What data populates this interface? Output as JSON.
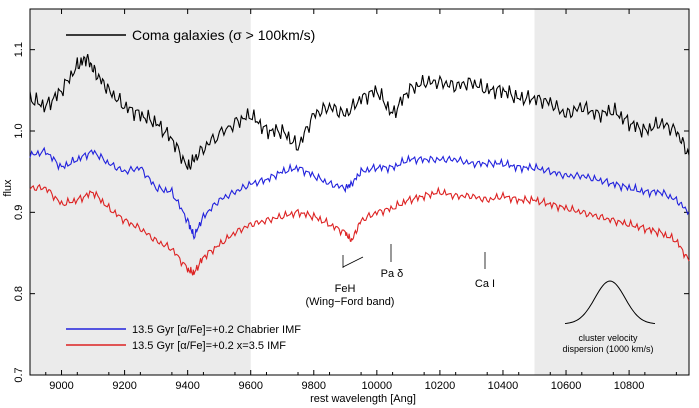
{
  "chart_data": {
    "type": "line",
    "title": "",
    "xlabel": "rest wavelength [Ang]",
    "ylabel": "flux",
    "xlim": [
      8900,
      10990
    ],
    "ylim": [
      0.7,
      1.15
    ],
    "x_ticks": [
      9000,
      9200,
      9400,
      9600,
      9800,
      10000,
      10200,
      10400,
      10600,
      10800
    ],
    "y_ticks": [
      0.7,
      0.8,
      0.9,
      1.0,
      1.1
    ],
    "shaded_regions": [
      [
        8900,
        9600
      ],
      [
        10500,
        10990
      ]
    ],
    "series": [
      {
        "name": "Coma galaxies (σ > 100km/s)",
        "color": "#000000",
        "x": [
          8900,
          8950,
          9000,
          9050,
          9080,
          9110,
          9150,
          9200,
          9250,
          9300,
          9350,
          9400,
          9430,
          9480,
          9550,
          9600,
          9650,
          9700,
          9750,
          9800,
          9850,
          9900,
          9950,
          10000,
          10050,
          10100,
          10150,
          10200,
          10250,
          10300,
          10350,
          10400,
          10450,
          10500,
          10550,
          10600,
          10650,
          10700,
          10750,
          10800,
          10850,
          10900,
          10950,
          10990
        ],
        "y": [
          1.04,
          1.03,
          1.05,
          1.08,
          1.09,
          1.07,
          1.05,
          1.03,
          1.02,
          1.01,
          0.99,
          0.955,
          0.97,
          0.99,
          1.01,
          1.02,
          1.0,
          1.0,
          0.98,
          1.02,
          1.03,
          1.02,
          1.04,
          1.05,
          1.02,
          1.05,
          1.06,
          1.06,
          1.055,
          1.06,
          1.05,
          1.05,
          1.04,
          1.04,
          1.035,
          1.02,
          1.03,
          1.02,
          1.025,
          1.01,
          1.0,
          1.01,
          1.0,
          0.97
        ]
      },
      {
        "name": "13.5 Gyr [α/Fe]=+0.2 Chabrier IMF",
        "color": "#2222dd",
        "x": [
          8900,
          8950,
          9000,
          9050,
          9100,
          9150,
          9200,
          9250,
          9300,
          9350,
          9400,
          9420,
          9450,
          9500,
          9550,
          9600,
          9650,
          9700,
          9750,
          9800,
          9850,
          9900,
          9920,
          9950,
          10000,
          10050,
          10100,
          10150,
          10200,
          10250,
          10300,
          10350,
          10400,
          10450,
          10500,
          10550,
          10600,
          10650,
          10700,
          10750,
          10800,
          10850,
          10900,
          10950,
          10990
        ],
        "y": [
          0.97,
          0.975,
          0.955,
          0.965,
          0.975,
          0.96,
          0.95,
          0.955,
          0.93,
          0.925,
          0.89,
          0.87,
          0.895,
          0.915,
          0.925,
          0.935,
          0.94,
          0.95,
          0.955,
          0.945,
          0.935,
          0.93,
          0.935,
          0.95,
          0.955,
          0.955,
          0.965,
          0.965,
          0.965,
          0.965,
          0.96,
          0.96,
          0.96,
          0.955,
          0.955,
          0.95,
          0.945,
          0.945,
          0.94,
          0.935,
          0.93,
          0.925,
          0.925,
          0.915,
          0.9
        ]
      },
      {
        "name": "13.5 Gyr [α/Fe]=+0.2 x=3.5 IMF",
        "color": "#dd2222",
        "x": [
          8900,
          8950,
          9000,
          9050,
          9100,
          9150,
          9200,
          9250,
          9300,
          9350,
          9400,
          9420,
          9450,
          9500,
          9550,
          9600,
          9650,
          9700,
          9750,
          9800,
          9850,
          9900,
          9920,
          9950,
          10000,
          10050,
          10100,
          10150,
          10200,
          10250,
          10300,
          10350,
          10400,
          10450,
          10500,
          10550,
          10600,
          10650,
          10700,
          10750,
          10800,
          10850,
          10900,
          10950,
          10990
        ],
        "y": [
          0.93,
          0.93,
          0.91,
          0.915,
          0.925,
          0.905,
          0.89,
          0.88,
          0.865,
          0.855,
          0.83,
          0.825,
          0.845,
          0.86,
          0.875,
          0.885,
          0.89,
          0.895,
          0.9,
          0.895,
          0.885,
          0.875,
          0.865,
          0.89,
          0.9,
          0.905,
          0.915,
          0.92,
          0.925,
          0.92,
          0.92,
          0.915,
          0.92,
          0.915,
          0.915,
          0.91,
          0.905,
          0.9,
          0.895,
          0.89,
          0.885,
          0.88,
          0.875,
          0.865,
          0.84
        ]
      }
    ],
    "annotations": [
      {
        "text": "FeH",
        "x": 9920,
        "y": 0.79
      },
      {
        "text": "(Wing−Ford band)",
        "x": 9940,
        "y": 0.765
      },
      {
        "text": "Pa δ",
        "x": 10050,
        "y": 0.815
      },
      {
        "text": "Ca I",
        "x": 10350,
        "y": 0.8
      },
      {
        "text": "cluster velocity",
        "x": 10760,
        "y": 0.735
      },
      {
        "text": "dispersion (1000 km/s)",
        "x": 10760,
        "y": 0.72
      }
    ],
    "legend": {
      "placement": "bottom-left"
    },
    "top_label_placement": "top-left"
  }
}
